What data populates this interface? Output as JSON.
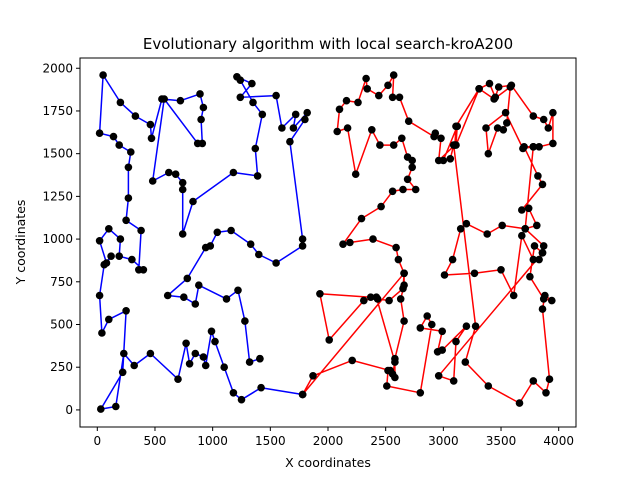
{
  "chart_data": {
    "type": "line",
    "title": "Evolutionary algorithm with local search-kroA200",
    "xlabel": "X coordinates",
    "ylabel": "Y coordinates",
    "xlim": [
      -150,
      4150
    ],
    "ylim": [
      -100,
      2060
    ],
    "xticks": [
      0,
      500,
      1000,
      1500,
      2000,
      2500,
      3000,
      3500,
      4000
    ],
    "yticks": [
      0,
      250,
      500,
      750,
      1000,
      1250,
      1500,
      1750,
      2000
    ],
    "grid": false,
    "legend": "none",
    "point_color": "#000000",
    "series": [
      {
        "color": "#0000ff",
        "points": [
          [
            1780,
            90
          ],
          [
            1420,
            130
          ],
          [
            1250,
            60
          ],
          [
            1180,
            100
          ],
          [
            1100,
            250
          ],
          [
            1020,
            400
          ],
          [
            990,
            460
          ],
          [
            940,
            260
          ],
          [
            920,
            310
          ],
          [
            850,
            330
          ],
          [
            800,
            270
          ],
          [
            770,
            390
          ],
          [
            700,
            180
          ],
          [
            460,
            330
          ],
          [
            320,
            260
          ],
          [
            230,
            330
          ],
          [
            160,
            20
          ],
          [
            30,
            5
          ],
          [
            220,
            220
          ],
          [
            250,
            580
          ],
          [
            100,
            530
          ],
          [
            40,
            450
          ],
          [
            20,
            670
          ],
          [
            60,
            850
          ],
          [
            120,
            900
          ],
          [
            80,
            860
          ],
          [
            20,
            990
          ],
          [
            100,
            1060
          ],
          [
            200,
            1000
          ],
          [
            190,
            900
          ],
          [
            300,
            880
          ],
          [
            400,
            820
          ],
          [
            360,
            820
          ],
          [
            380,
            1050
          ],
          [
            250,
            1110
          ],
          [
            270,
            1240
          ],
          [
            270,
            1420
          ],
          [
            290,
            1510
          ],
          [
            190,
            1550
          ],
          [
            140,
            1600
          ],
          [
            20,
            1620
          ],
          [
            50,
            1960
          ],
          [
            200,
            1800
          ],
          [
            330,
            1720
          ],
          [
            460,
            1670
          ],
          [
            470,
            1590
          ],
          [
            560,
            1820
          ],
          [
            720,
            1810
          ],
          [
            890,
            1850
          ],
          [
            920,
            1770
          ],
          [
            900,
            1700
          ],
          [
            910,
            1560
          ],
          [
            870,
            1560
          ],
          [
            580,
            1820
          ],
          [
            480,
            1340
          ],
          [
            620,
            1390
          ],
          [
            680,
            1380
          ],
          [
            740,
            1330
          ],
          [
            740,
            1290
          ],
          [
            740,
            1030
          ],
          [
            830,
            1220
          ],
          [
            1180,
            1390
          ],
          [
            1390,
            1370
          ],
          [
            1370,
            1530
          ],
          [
            1430,
            1730
          ],
          [
            1350,
            1800
          ],
          [
            1240,
            1930
          ],
          [
            1210,
            1950
          ],
          [
            1340,
            1910
          ],
          [
            1240,
            1830
          ],
          [
            1550,
            1840
          ],
          [
            1600,
            1650
          ],
          [
            1720,
            1730
          ],
          [
            1700,
            1650
          ],
          [
            1820,
            1740
          ],
          [
            1800,
            1700
          ],
          [
            1670,
            1570
          ],
          [
            1780,
            1000
          ],
          [
            1780,
            960
          ],
          [
            1550,
            860
          ],
          [
            1400,
            910
          ],
          [
            1330,
            970
          ],
          [
            1160,
            1050
          ],
          [
            1040,
            1040
          ],
          [
            980,
            960
          ],
          [
            940,
            950
          ],
          [
            780,
            770
          ],
          [
            610,
            670
          ],
          [
            750,
            660
          ],
          [
            850,
            620
          ],
          [
            880,
            730
          ],
          [
            1120,
            650
          ],
          [
            1220,
            700
          ],
          [
            1280,
            520
          ],
          [
            1320,
            280
          ],
          [
            1410,
            300
          ],
          [
            1410,
            300
          ]
        ]
      },
      {
        "color": "#ff0000",
        "points": [
          [
            1780,
            90
          ],
          [
            1870,
            200
          ],
          [
            2210,
            290
          ],
          [
            2540,
            230
          ],
          [
            2580,
            190
          ],
          [
            2580,
            300
          ],
          [
            2660,
            520
          ],
          [
            2630,
            650
          ],
          [
            2660,
            730
          ],
          [
            2660,
            800
          ],
          [
            2610,
            880
          ],
          [
            2590,
            950
          ],
          [
            2390,
            1000
          ],
          [
            2190,
            980
          ],
          [
            2130,
            970
          ],
          [
            2290,
            1120
          ],
          [
            2460,
            1190
          ],
          [
            2560,
            1280
          ],
          [
            2650,
            1290
          ],
          [
            2760,
            1290
          ],
          [
            2690,
            1350
          ],
          [
            2730,
            1420
          ],
          [
            2730,
            1460
          ],
          [
            2690,
            1480
          ],
          [
            2640,
            1590
          ],
          [
            2570,
            1550
          ],
          [
            2450,
            1550
          ],
          [
            2380,
            1640
          ],
          [
            2240,
            1380
          ],
          [
            2170,
            1650
          ],
          [
            2080,
            1630
          ],
          [
            2100,
            1760
          ],
          [
            2160,
            1810
          ],
          [
            2260,
            1800
          ],
          [
            2330,
            1940
          ],
          [
            2340,
            1880
          ],
          [
            2440,
            1840
          ],
          [
            2520,
            1900
          ],
          [
            2570,
            1960
          ],
          [
            2560,
            1830
          ],
          [
            2620,
            1830
          ],
          [
            2700,
            1690
          ],
          [
            2920,
            1600
          ],
          [
            2930,
            1620
          ],
          [
            2980,
            1590
          ],
          [
            2960,
            1460
          ],
          [
            3100,
            1550
          ],
          [
            3110,
            1660
          ],
          [
            3310,
            1880
          ],
          [
            3400,
            1910
          ],
          [
            3450,
            1830
          ],
          [
            3480,
            1890
          ],
          [
            3590,
            1900
          ],
          [
            3780,
            1720
          ],
          [
            3870,
            1700
          ],
          [
            3910,
            1650
          ],
          [
            3950,
            1740
          ],
          [
            3950,
            1560
          ],
          [
            3830,
            1540
          ],
          [
            3780,
            1540
          ],
          [
            3700,
            1540
          ],
          [
            3820,
            1370
          ],
          [
            3860,
            1320
          ],
          [
            3680,
            1170
          ],
          [
            3740,
            1180
          ],
          [
            3810,
            1080
          ],
          [
            3710,
            1060
          ],
          [
            3870,
            960
          ],
          [
            3860,
            920
          ],
          [
            3830,
            880
          ],
          [
            3780,
            880
          ],
          [
            3680,
            1020
          ],
          [
            3610,
            670
          ],
          [
            3500,
            820
          ],
          [
            3270,
            800
          ],
          [
            3010,
            790
          ],
          [
            3080,
            880
          ],
          [
            3150,
            1060
          ],
          [
            3200,
            1090
          ],
          [
            3380,
            1030
          ],
          [
            3510,
            1080
          ],
          [
            3710,
            1060
          ],
          [
            3780,
            1540
          ],
          [
            3690,
            1530
          ],
          [
            3540,
            1740
          ],
          [
            3370,
            1650
          ],
          [
            3390,
            1500
          ],
          [
            3470,
            1650
          ],
          [
            3520,
            1640
          ],
          [
            3550,
            1680
          ],
          [
            3580,
            1890
          ],
          [
            3440,
            1820
          ],
          [
            3310,
            1880
          ],
          [
            3110,
            1550
          ],
          [
            3120,
            1660
          ],
          [
            3000,
            1460
          ],
          [
            3060,
            1470
          ],
          [
            3090,
            1550
          ],
          [
            3280,
            490
          ],
          [
            3190,
            280
          ],
          [
            3390,
            140
          ],
          [
            3660,
            40
          ],
          [
            3780,
            170
          ],
          [
            3890,
            100
          ],
          [
            3920,
            180
          ],
          [
            3860,
            590
          ],
          [
            3880,
            670
          ],
          [
            3940,
            640
          ],
          [
            3870,
            650
          ],
          [
            3750,
            780
          ],
          [
            3790,
            960
          ],
          [
            3860,
            920
          ],
          [
            2960,
            200
          ],
          [
            3090,
            170
          ],
          [
            3110,
            400
          ],
          [
            3200,
            490
          ],
          [
            2990,
            350
          ],
          [
            2950,
            340
          ],
          [
            2990,
            460
          ],
          [
            2800,
            480
          ],
          [
            2860,
            550
          ],
          [
            2900,
            500
          ],
          [
            2800,
            100
          ],
          [
            2510,
            140
          ],
          [
            2520,
            230
          ],
          [
            2560,
            210
          ],
          [
            2580,
            280
          ],
          [
            2420,
            660
          ],
          [
            2310,
            640
          ],
          [
            2010,
            410
          ],
          [
            1930,
            680
          ],
          [
            2370,
            660
          ],
          [
            2430,
            650
          ],
          [
            2530,
            640
          ],
          [
            2650,
            710
          ],
          [
            2660,
            800
          ],
          [
            1780,
            90
          ]
        ]
      }
    ]
  }
}
